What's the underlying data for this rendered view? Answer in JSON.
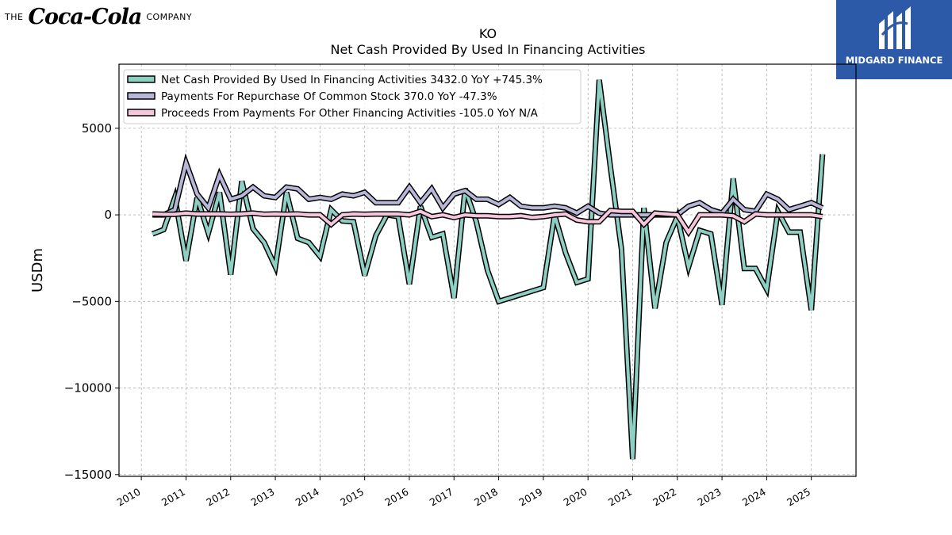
{
  "branding": {
    "left_pre": "THE",
    "left_script": "Coca-Cola",
    "left_post": "COMPANY",
    "right_name": "MIDGARD FINANCE",
    "right_bg": "#2c5aa8"
  },
  "chart_data": {
    "type": "line",
    "title": "KO",
    "subtitle": "Net Cash Provided By Used In Financing Activities",
    "ylabel": "USDm",
    "xlabel": "",
    "xlim": [
      2009.5,
      2026.0
    ],
    "ylim": [
      -15100,
      8700
    ],
    "x_ticks": [
      "2010",
      "2011",
      "2012",
      "2013",
      "2014",
      "2015",
      "2016",
      "2017",
      "2018",
      "2019",
      "2020",
      "2021",
      "2022",
      "2023",
      "2024",
      "2025"
    ],
    "y_ticks": [
      {
        "value": 5000,
        "label": "5000"
      },
      {
        "value": 0,
        "label": "0"
      },
      {
        "value": -5000,
        "label": "−5000"
      },
      {
        "value": -10000,
        "label": "−10000"
      },
      {
        "value": -15000,
        "label": "−15000"
      }
    ],
    "grid": true,
    "legend_position": "top-left",
    "series": [
      {
        "name": "Net Cash Provided By Used In Financing Activities",
        "legend_label": "Net Cash Provided By Used In Financing Activities  3432.0 YoY +745.3%",
        "color": "#8ecfc3",
        "x": [
          2010.25,
          2010.5,
          2010.75,
          2011.0,
          2011.25,
          2011.5,
          2011.75,
          2012.0,
          2012.25,
          2012.5,
          2012.75,
          2013.0,
          2013.25,
          2013.5,
          2013.75,
          2014.0,
          2014.25,
          2014.5,
          2014.75,
          2015.0,
          2015.25,
          2015.5,
          2015.75,
          2016.0,
          2016.25,
          2016.5,
          2016.75,
          2017.0,
          2017.25,
          2017.5,
          2017.75,
          2018.0,
          2018.25,
          2018.5,
          2018.75,
          2019.0,
          2019.25,
          2019.5,
          2019.75,
          2020.0,
          2020.25,
          2020.5,
          2020.75,
          2021.0,
          2021.25,
          2021.5,
          2021.75,
          2022.0,
          2022.25,
          2022.5,
          2022.75,
          2023.0,
          2023.25,
          2023.5,
          2023.75,
          2024.0,
          2024.25,
          2024.5,
          2024.75,
          2025.0,
          2025.25
        ],
        "values": [
          -1100,
          -850,
          1000,
          -2650,
          1000,
          -1050,
          1300,
          -3450,
          1950,
          -800,
          -1600,
          -3000,
          1300,
          -1350,
          -1600,
          -2400,
          300,
          -350,
          -400,
          -3500,
          -1200,
          0,
          -100,
          -4000,
          500,
          -1300,
          -1100,
          -4800,
          1500,
          -400,
          -3200,
          -5000,
          -4800,
          -4600,
          -4400,
          -4200,
          0,
          -2200,
          -3900,
          -3700,
          7800,
          2800,
          -2000,
          -14100,
          400,
          -5400,
          -1600,
          -100,
          -3000,
          -900,
          -1100,
          -5200,
          2100,
          -3100,
          -3100,
          -4300,
          200,
          -1000,
          -1000,
          -5500,
          3500
        ]
      },
      {
        "name": "Payments For Repurchase Of Common Stock",
        "legend_label": "Payments For Repurchase Of Common Stock  370.0 YoY -47.3%",
        "color": "#b9b7d8",
        "x": [
          2010.25,
          2010.5,
          2010.75,
          2011.0,
          2011.25,
          2011.5,
          2011.75,
          2012.0,
          2012.25,
          2012.5,
          2012.75,
          2013.0,
          2013.25,
          2013.5,
          2013.75,
          2014.0,
          2014.25,
          2014.5,
          2014.75,
          2015.0,
          2015.25,
          2015.5,
          2015.75,
          2016.0,
          2016.25,
          2016.5,
          2016.75,
          2017.0,
          2017.25,
          2017.5,
          2017.75,
          2018.0,
          2018.25,
          2018.5,
          2018.75,
          2019.0,
          2019.25,
          2019.5,
          2019.75,
          2020.0,
          2020.25,
          2020.5,
          2020.75,
          2021.0,
          2021.25,
          2021.5,
          2021.75,
          2022.0,
          2022.25,
          2022.5,
          2022.75,
          2023.0,
          2023.25,
          2023.5,
          2023.75,
          2024.0,
          2024.25,
          2024.5,
          2024.75,
          2025.0,
          2025.25
        ],
        "values": [
          0,
          0,
          300,
          3000,
          1200,
          400,
          2300,
          900,
          1100,
          1600,
          1100,
          1000,
          1600,
          1500,
          900,
          1000,
          900,
          1200,
          1100,
          1300,
          700,
          700,
          700,
          1600,
          700,
          1500,
          400,
          1200,
          1400,
          900,
          900,
          600,
          1000,
          500,
          400,
          400,
          500,
          400,
          100,
          500,
          100,
          0,
          0,
          0,
          0,
          0,
          0,
          0,
          500,
          700,
          300,
          100,
          900,
          300,
          200,
          1200,
          900,
          300,
          500,
          700,
          400
        ]
      },
      {
        "name": "Proceeds From Payments For Other Financing Activities",
        "legend_label": "Proceeds From Payments For Other Financing Activities  -105.0 YoY N/A",
        "color": "#f7c6dd",
        "x": [
          2010.25,
          2010.5,
          2010.75,
          2011.0,
          2011.25,
          2011.5,
          2011.75,
          2012.0,
          2012.25,
          2012.5,
          2012.75,
          2013.0,
          2013.25,
          2013.5,
          2013.75,
          2014.0,
          2014.25,
          2014.5,
          2014.75,
          2015.0,
          2015.25,
          2015.5,
          2015.75,
          2016.0,
          2016.25,
          2016.5,
          2016.75,
          2017.0,
          2017.25,
          2017.5,
          2017.75,
          2018.0,
          2018.25,
          2018.5,
          2018.75,
          2019.0,
          2019.25,
          2019.5,
          2019.75,
          2020.0,
          2020.25,
          2020.5,
          2020.75,
          2021.0,
          2021.25,
          2021.5,
          2021.75,
          2022.0,
          2022.25,
          2022.5,
          2022.75,
          2023.0,
          2023.25,
          2023.5,
          2023.75,
          2024.0,
          2024.25,
          2024.5,
          2024.75,
          2025.0,
          2025.25
        ],
        "values": [
          50,
          30,
          30,
          100,
          50,
          50,
          50,
          30,
          50,
          100,
          30,
          50,
          30,
          50,
          0,
          0,
          -550,
          0,
          50,
          30,
          50,
          50,
          50,
          0,
          200,
          -100,
          0,
          -150,
          0,
          -50,
          -50,
          -100,
          -100,
          -50,
          -150,
          -100,
          0,
          50,
          -300,
          -400,
          -400,
          250,
          200,
          200,
          -550,
          100,
          50,
          0,
          -1000,
          0,
          0,
          0,
          -50,
          -400,
          50,
          0,
          0,
          0,
          0,
          0,
          -100
        ]
      }
    ]
  }
}
